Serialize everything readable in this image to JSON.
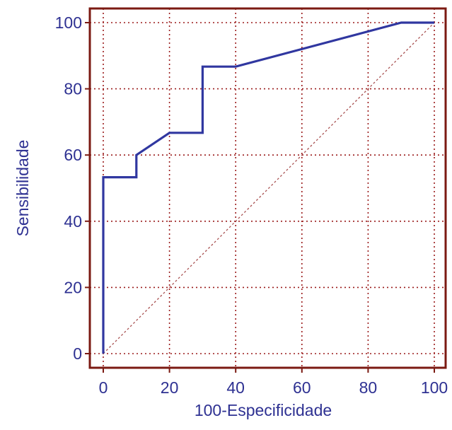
{
  "chart_data": {
    "type": "line",
    "title": "",
    "xlabel": "100-Especificidade",
    "ylabel": "Sensibilidade",
    "xlim": [
      0,
      100
    ],
    "ylim": [
      0,
      100
    ],
    "x_ticks": [
      "0",
      "20",
      "40",
      "60",
      "80",
      "100"
    ],
    "y_ticks": [
      "0",
      "20",
      "40",
      "60",
      "80",
      "100"
    ],
    "grid": true,
    "legend": "none",
    "series": [
      {
        "x": [
          0,
          0,
          10,
          10,
          20,
          30,
          30,
          40,
          90,
          100
        ],
        "y": [
          0,
          53.3,
          53.3,
          60,
          66.7,
          66.7,
          86.7,
          86.7,
          100,
          100
        ]
      }
    ],
    "reference_line": {
      "x": [
        0,
        100
      ],
      "y": [
        0,
        100
      ]
    }
  },
  "colors": {
    "axis_frame": "#7b1a12",
    "grid": "#9b1c1c",
    "curve": "#3037a0",
    "reference": "#a85050",
    "text": "#2e3192"
  }
}
